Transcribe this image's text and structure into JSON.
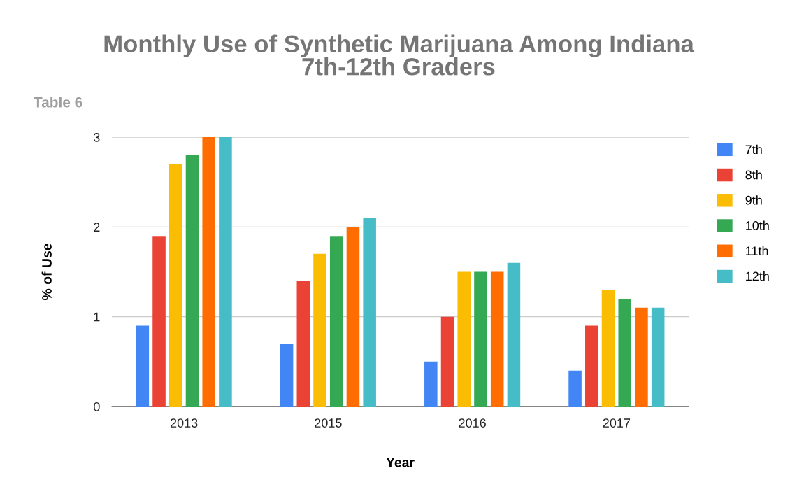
{
  "chart_data": {
    "type": "bar",
    "title": "Monthly Use of Synthetic Marijuana Among Indiana\n7th-12th Graders",
    "subtitle": "Table 6",
    "xlabel": "Year",
    "ylabel": "% of Use",
    "categories": [
      "2013",
      "2015",
      "2016",
      "2017"
    ],
    "series": [
      {
        "name": "7th",
        "color": "#4285f4",
        "values": [
          0.9,
          0.7,
          0.5,
          0.4
        ]
      },
      {
        "name": "8th",
        "color": "#ea4335",
        "values": [
          1.9,
          1.4,
          1.0,
          0.9
        ]
      },
      {
        "name": "9th",
        "color": "#fbbc04",
        "values": [
          2.7,
          1.7,
          1.5,
          1.3
        ]
      },
      {
        "name": "10th",
        "color": "#34a853",
        "values": [
          2.8,
          1.9,
          1.5,
          1.2
        ]
      },
      {
        "name": "11th",
        "color": "#ff6d01",
        "values": [
          3.0,
          2.0,
          1.5,
          1.1
        ]
      },
      {
        "name": "12th",
        "color": "#46bdc6",
        "values": [
          3.0,
          2.1,
          1.6,
          1.1
        ]
      }
    ],
    "ylim": [
      0,
      3
    ],
    "yticks": [
      0,
      1,
      2,
      3
    ],
    "grid": "y",
    "legend": "right"
  }
}
